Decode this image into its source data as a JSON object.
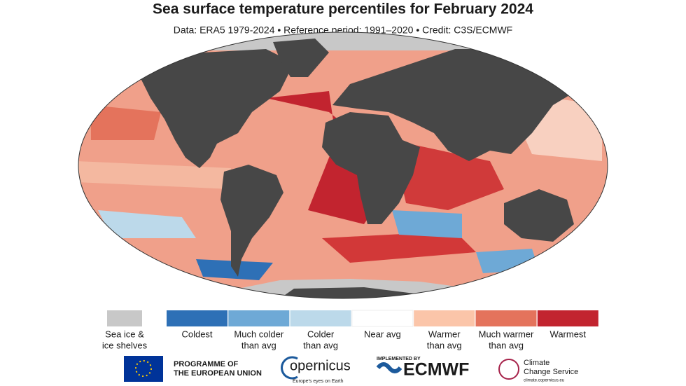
{
  "header": {
    "title": "Sea surface temperature percentiles for February 2024",
    "subtitle": "Data: ERA5 1979-2024 • Reference period: 1991–2020 • Credit: C3S/ECMWF"
  },
  "legend": {
    "items": [
      {
        "lines": [
          "Sea ice &",
          "ice shelves"
        ],
        "color": "#c8c8c8"
      },
      {
        "lines": [
          "Coldest"
        ],
        "color": "#2e70b6"
      },
      {
        "lines": [
          "Much colder",
          "than avg"
        ],
        "color": "#6ea9d6"
      },
      {
        "lines": [
          "Colder",
          "than avg"
        ],
        "color": "#bcd9ea"
      },
      {
        "lines": [
          "Near avg"
        ],
        "color": "#ffffff"
      },
      {
        "lines": [
          "Warmer",
          "than avg"
        ],
        "color": "#fbc5a9"
      },
      {
        "lines": [
          "Much warmer",
          "than avg"
        ],
        "color": "#e4735c"
      },
      {
        "lines": [
          "Warmest"
        ],
        "color": "#c2242f"
      }
    ]
  },
  "footer": {
    "eu": [
      "PROGRAMME OF",
      "THE EUROPEAN UNION"
    ],
    "copernicus": "opernicus",
    "copernicus_tagline": "Europe's eyes on Earth",
    "ecmwf_note": "IMPLEMENTED BY",
    "ecmwf": "ECMWF",
    "c3s": [
      "Climate",
      "Change Service"
    ],
    "c3s_url": "climate.copernicus.eu"
  }
}
